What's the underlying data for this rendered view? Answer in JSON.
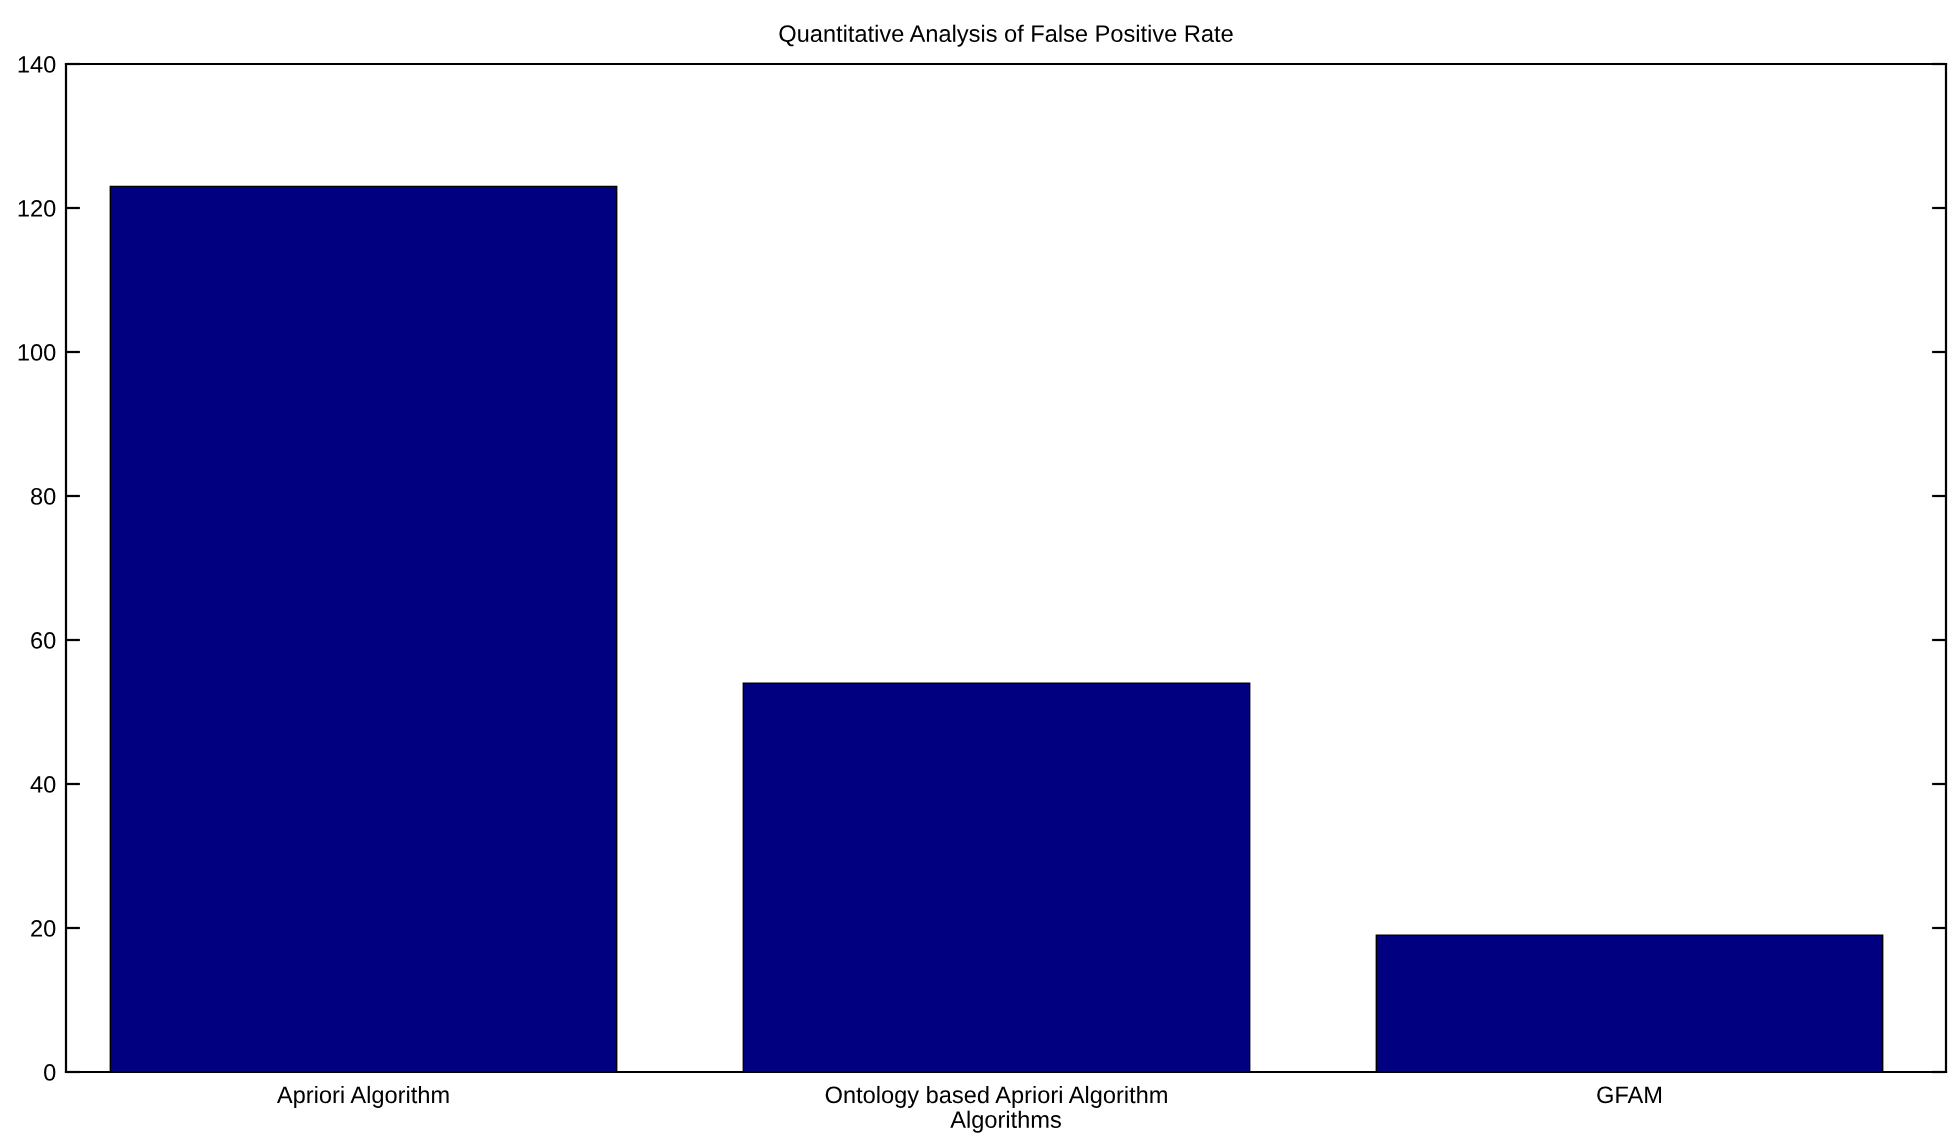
{
  "chart_data": {
    "type": "bar",
    "title": "Quantitative Analysis of False Positive Rate",
    "xlabel": "Algorithms",
    "categories": [
      "Apriori Algorithm",
      "Ontology based Apriori Algorithm",
      "GFAM"
    ],
    "values": [
      123,
      54,
      19
    ],
    "color": "#000080",
    "ylim": [
      0,
      140
    ],
    "yticks": [
      0,
      20,
      40,
      60,
      80,
      100,
      120,
      140
    ],
    "grid": false
  }
}
